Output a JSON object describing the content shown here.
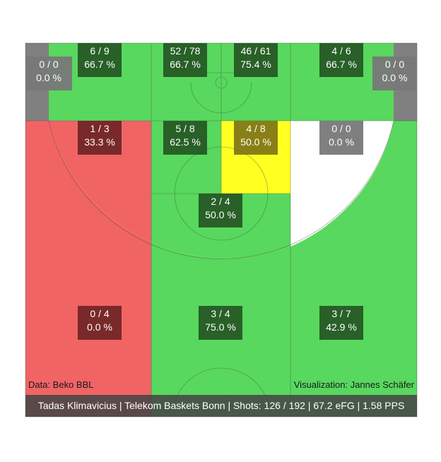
{
  "chart_data": {
    "type": "heatmap",
    "title": "",
    "zones": [
      {
        "id": "left-corner-three",
        "made": 0,
        "attempts": 0,
        "text": "0 / 0",
        "pct_text": "0.0 %",
        "color": "#808080"
      },
      {
        "id": "left-wing-top",
        "made": 6,
        "attempts": 9,
        "text": "6 / 9",
        "pct_text": "66.7 %",
        "color": "#58d85e"
      },
      {
        "id": "top-left-mid",
        "made": 52,
        "attempts": 78,
        "text": "52 / 78",
        "pct_text": "66.7 %",
        "color": "#58d85e"
      },
      {
        "id": "top-right-mid",
        "made": 46,
        "attempts": 61,
        "text": "46 / 61",
        "pct_text": "75.4 %",
        "color": "#58d85e"
      },
      {
        "id": "right-wing-top",
        "made": 4,
        "attempts": 6,
        "text": "4 / 6",
        "pct_text": "66.7 %",
        "color": "#58d85e"
      },
      {
        "id": "right-corner-three",
        "made": 0,
        "attempts": 0,
        "text": "0 / 0",
        "pct_text": "0.0 %",
        "color": "#808080"
      },
      {
        "id": "left-baseline-mid",
        "made": 1,
        "attempts": 3,
        "text": "1 / 3",
        "pct_text": "33.3 %",
        "color": "#f06464"
      },
      {
        "id": "left-elbow",
        "made": 5,
        "attempts": 8,
        "text": "5 / 8",
        "pct_text": "62.5 %",
        "color": "#58d85e"
      },
      {
        "id": "right-elbow",
        "made": 4,
        "attempts": 8,
        "text": "4 / 8",
        "pct_text": "50.0 %",
        "color": "#ffff22"
      },
      {
        "id": "right-baseline-mid",
        "made": 0,
        "attempts": 0,
        "text": "0 / 0",
        "pct_text": "0.0 %",
        "color": "#ffffff"
      },
      {
        "id": "free-throw-area",
        "made": 2,
        "attempts": 4,
        "text": "2 / 4",
        "pct_text": "50.0 %",
        "color": "#58d85e"
      },
      {
        "id": "left-three",
        "made": 0,
        "attempts": 4,
        "text": "0 / 4",
        "pct_text": "0.0 %",
        "color": "#f06464"
      },
      {
        "id": "top-three",
        "made": 3,
        "attempts": 4,
        "text": "3 / 4",
        "pct_text": "75.0 %",
        "color": "#58d85e"
      },
      {
        "id": "right-three",
        "made": 3,
        "attempts": 7,
        "text": "3 / 7",
        "pct_text": "42.9 %",
        "color": "#58d85e"
      }
    ]
  },
  "credits": {
    "data": "Data: Beko BBL",
    "visualization": "Visualization: Jannes Schäfer"
  },
  "footer": {
    "text": "Tadas Klimavicius | Telekom Baskets Bonn | Shots: 126 / 192 | 67.2 eFG | 1.58 PPS"
  },
  "colors": {
    "good": "#58d85e",
    "bad": "#f06464",
    "average": "#ffff22",
    "none": "#808080",
    "label_bg": "#2a5e2a"
  }
}
